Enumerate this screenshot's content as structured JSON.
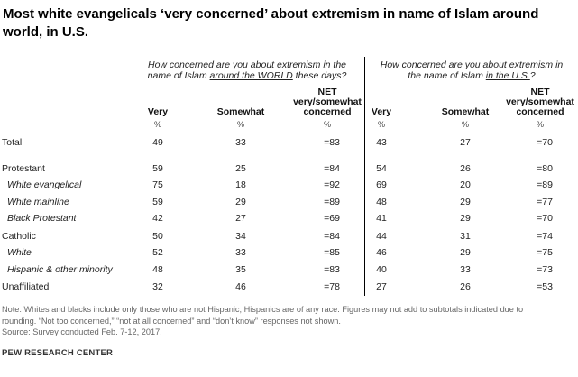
{
  "title": "Most white evangelicals ‘very concerned’ about extremism in name of Islam around world, in U.S.",
  "group_world": {
    "line1": "How concerned are you about extremism in the",
    "line2_pre": "name of Islam ",
    "line2_u": "around the WORLD",
    "line2_post": " these days?"
  },
  "group_us": {
    "line1": "How concerned are you about extremism in",
    "line2_pre": "the name of Islam ",
    "line2_u": "in the U.S.",
    "line2_post": "?"
  },
  "columns": {
    "very": "Very",
    "somewhat": "Somewhat",
    "net_line1": "NET",
    "net_line2": "very/somewhat",
    "net_line3": "concerned",
    "pct": "%"
  },
  "chart_data": {
    "type": "table",
    "title": "Most white evangelicals ‘very concerned’ about extremism in name of Islam around world, in U.S.",
    "rows": [
      {
        "label": "Total",
        "sub": false,
        "world": [
          "49",
          "33",
          "=83"
        ],
        "us": [
          "43",
          "27",
          "=70"
        ]
      },
      {
        "label": "Protestant",
        "sub": false,
        "world": [
          "59",
          "25",
          "=84"
        ],
        "us": [
          "54",
          "26",
          "=80"
        ]
      },
      {
        "label": "White evangelical",
        "sub": true,
        "world": [
          "75",
          "18",
          "=92"
        ],
        "us": [
          "69",
          "20",
          "=89"
        ]
      },
      {
        "label": "White mainline",
        "sub": true,
        "world": [
          "59",
          "29",
          "=89"
        ],
        "us": [
          "48",
          "29",
          "=77"
        ]
      },
      {
        "label": "Black Protestant",
        "sub": true,
        "world": [
          "42",
          "27",
          "=69"
        ],
        "us": [
          "41",
          "29",
          "=70"
        ]
      },
      {
        "label": "Catholic",
        "sub": false,
        "world": [
          "50",
          "34",
          "=84"
        ],
        "us": [
          "44",
          "31",
          "=74"
        ]
      },
      {
        "label": "White",
        "sub": true,
        "world": [
          "52",
          "33",
          "=85"
        ],
        "us": [
          "46",
          "29",
          "=75"
        ]
      },
      {
        "label": "Hispanic & other minority",
        "sub": true,
        "world": [
          "48",
          "35",
          "=83"
        ],
        "us": [
          "40",
          "33",
          "=73"
        ]
      },
      {
        "label": "Unaffiliated",
        "sub": false,
        "world": [
          "32",
          "46",
          "=78"
        ],
        "us": [
          "27",
          "26",
          "=53"
        ]
      }
    ]
  },
  "notes": {
    "line1": "Note: Whites and blacks include only those who are not Hispanic; Hispanics are of any race. Figures may not add to subtotals indicated due to",
    "line2": "rounding. “Not too concerned,” “not at all concerned” and “don’t know” responses not shown.",
    "line3": "Source: Survey conducted Feb. 7-12, 2017."
  },
  "source_label": "PEW RESEARCH CENTER"
}
